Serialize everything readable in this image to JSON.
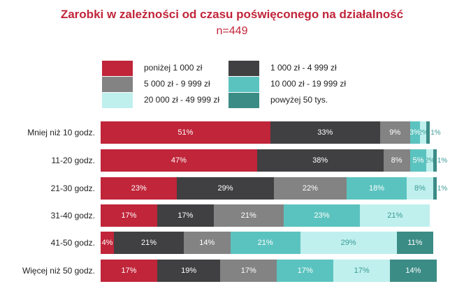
{
  "chart_data": {
    "type": "bar",
    "orientation": "horizontal",
    "stacked": true,
    "title": "Zarobki w zależności od czasu poświęconego na działalność",
    "subtitle": "n=449",
    "xlim": [
      0,
      100
    ],
    "grid": false,
    "legend_position": "top",
    "categories": [
      "Mniej niż 10 godz.",
      "11-20 godz.",
      "21-30 godz.",
      "31-40 godz.",
      "41-50 godz.",
      "Więcej niż 50 godz."
    ],
    "series": [
      {
        "name": "poniżej 1 000 zł",
        "color": "#c0253a",
        "text_color": "#ffffff",
        "values": [
          51,
          47,
          23,
          17,
          4,
          17
        ],
        "labels": [
          "51%",
          "47%",
          "23%",
          "17%",
          "4%",
          "17%"
        ]
      },
      {
        "name": "1 000 zł - 4 999 zł",
        "color": "#404042",
        "text_color": "#ffffff",
        "values": [
          33,
          38,
          29,
          17,
          21,
          19
        ],
        "labels": [
          "33%",
          "38%",
          "29%",
          "17%",
          "21%",
          "19%"
        ]
      },
      {
        "name": "5 000 zł - 9 999 zł",
        "color": "#838383",
        "text_color": "#ffffff",
        "values": [
          9,
          8,
          22,
          21,
          14,
          17
        ],
        "labels": [
          "9%",
          "8%",
          "22%",
          "21%",
          "14%",
          "17%"
        ]
      },
      {
        "name": "10 000 zł - 19 999 zł",
        "color": "#5bc3bf",
        "text_color": "#ffffff",
        "values": [
          3,
          5,
          18,
          23,
          21,
          17
        ],
        "labels": [
          "3%",
          "5%",
          "18%",
          "23%",
          "21%",
          "17%"
        ]
      },
      {
        "name": "20 000 zł - 49 999 zł",
        "color": "#bff0ee",
        "text_color": "#3a9a95",
        "values": [
          2,
          2,
          8,
          21,
          29,
          17
        ],
        "labels": [
          "2%",
          "2%",
          "8%",
          "21%",
          "29%",
          "17%"
        ]
      },
      {
        "name": "powyżej 50 tys.",
        "color": "#3c8c86",
        "text_color": "#ffffff",
        "values": [
          1,
          1,
          1,
          0,
          11,
          14
        ],
        "labels": [
          "1%",
          "1%",
          "1%",
          "",
          "11%",
          "14%"
        ]
      }
    ]
  }
}
